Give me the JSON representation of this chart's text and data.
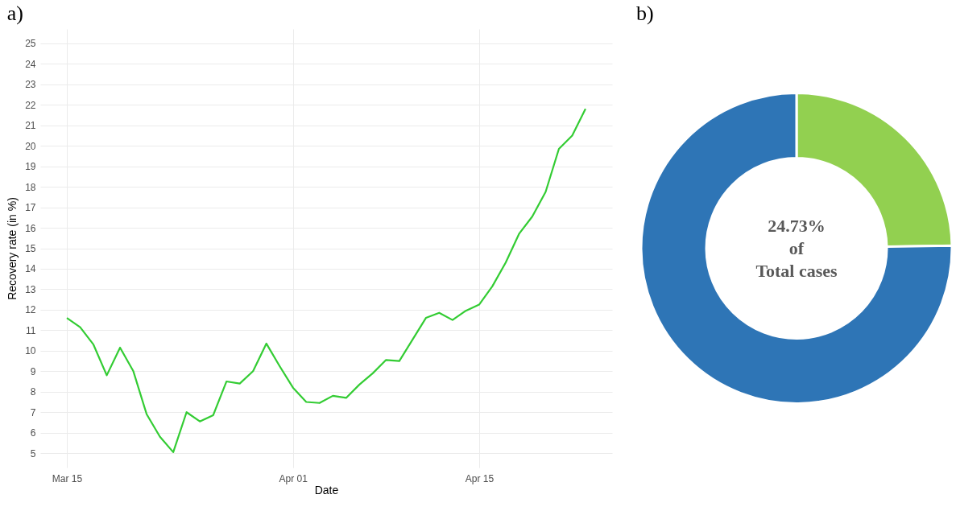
{
  "chart_data": [
    {
      "type": "line",
      "title": "a)",
      "xlabel": "Date",
      "ylabel": "Recovery rate (in %)",
      "x": [
        "--03-15",
        "--03-16",
        "--03-17",
        "--03-18",
        "--03-19",
        "--03-20",
        "--03-21",
        "--03-22",
        "--03-23",
        "--03-24",
        "--03-25",
        "--03-26",
        "--03-27",
        "--03-28",
        "--03-29",
        "--03-30",
        "--03-31",
        "--04-01",
        "--04-02",
        "--04-03",
        "--04-04",
        "--04-05",
        "--04-06",
        "--04-07",
        "--04-08",
        "--04-09",
        "--04-10",
        "--04-11",
        "--04-12",
        "--04-13",
        "--04-14",
        "--04-15",
        "--04-16",
        "--04-17",
        "--04-18",
        "--04-19",
        "--04-20",
        "--04-21",
        "--04-22",
        "--04-23"
      ],
      "series": [
        {
          "color": "#33cc33",
          "values": [
            11.6,
            11.15,
            10.3,
            8.8,
            10.15,
            9.0,
            6.9,
            5.8,
            5.05,
            7.0,
            6.55,
            6.85,
            8.5,
            8.4,
            9.0,
            10.35,
            9.25,
            8.2,
            7.5,
            7.45,
            7.8,
            7.7,
            8.35,
            8.9,
            9.55,
            9.5,
            10.55,
            11.6,
            11.85,
            11.5,
            11.95,
            12.25,
            13.15,
            14.3,
            15.7,
            16.55,
            17.75,
            19.85,
            20.5,
            21.8
          ]
        }
      ],
      "xlim": [
        "--03-13",
        "--04-25"
      ],
      "xticks": [
        {
          "value": "--03-15",
          "label": "Mar 15"
        },
        {
          "value": "--04-01",
          "label": "Apr 01"
        },
        {
          "value": "--04-15",
          "label": "Apr 15"
        }
      ],
      "ylim": [
        4.3,
        25.7
      ],
      "yticks": [
        5,
        6,
        7,
        8,
        9,
        10,
        11,
        12,
        13,
        14,
        15,
        16,
        17,
        18,
        19,
        20,
        21,
        22,
        23,
        24,
        25
      ],
      "grid": true,
      "marker": "none",
      "line_style": "solid"
    },
    {
      "type": "donut",
      "title": "b)",
      "categories": [
        null,
        null
      ],
      "values": [
        24.73,
        75.27
      ],
      "colors": [
        "#92d050",
        "#2e75b6"
      ],
      "annotations": [
        "24.73%",
        "of",
        "Total cases"
      ]
    }
  ]
}
